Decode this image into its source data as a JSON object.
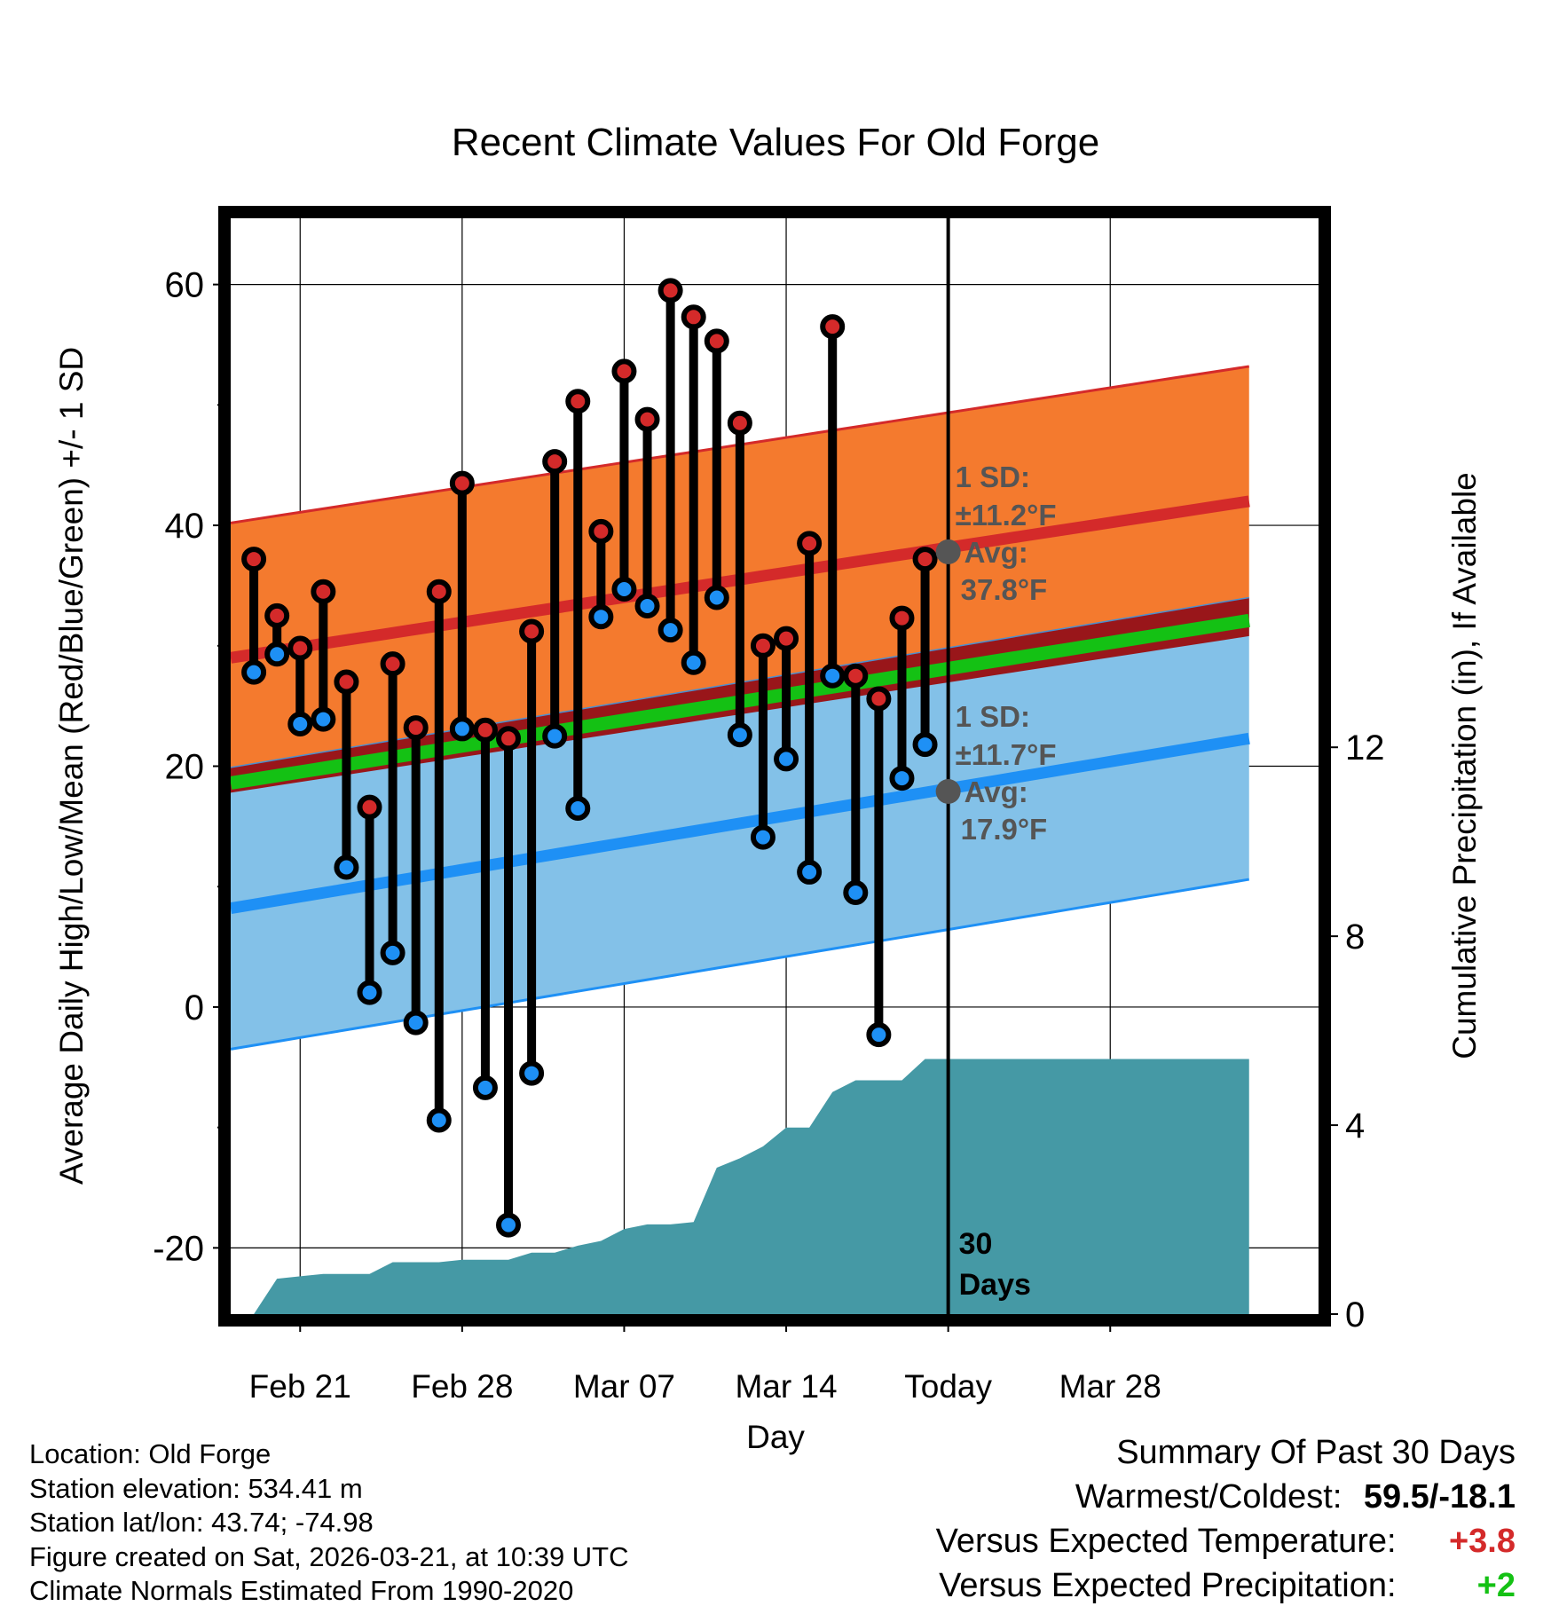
{
  "title": "Recent Climate Values For Old Forge",
  "chart_data": {
    "type": "range-dumbbell-with-bands",
    "title": "Recent Climate Values For Old Forge",
    "xlabel": "Day",
    "ylabel_left": "Average Daily High/Low/Mean (Red/Blue/Green) +/- 1 SD",
    "ylabel_right": "Cumulative Precipitation (in), If Available",
    "ylim_left": [
      -25.5,
      65.5
    ],
    "ylim_right": [
      0,
      23.2
    ],
    "xlim": [
      -3.0,
      44.0
    ],
    "yticks_left": [
      -20,
      0,
      20,
      40,
      60
    ],
    "yticks_left_labels": [
      "-20",
      "0",
      "20",
      "40",
      "60"
    ],
    "yticks_right": [
      0,
      4,
      8,
      12
    ],
    "yticks_right_labels": [
      "0",
      "4",
      "8",
      "12"
    ],
    "xticks": [
      0,
      7,
      14,
      21,
      28,
      35
    ],
    "xtick_labels": [
      "Feb 21",
      "Feb 28",
      "Mar 07",
      "Mar 14",
      "Today",
      "Mar 28"
    ],
    "today_x": 28,
    "today_marker_text": [
      "30",
      "Days"
    ],
    "days_x": [
      -2,
      -1,
      0,
      1,
      2,
      3,
      4,
      5,
      6,
      7,
      8,
      9,
      10,
      11,
      12,
      13,
      14,
      15,
      16,
      17,
      18,
      19,
      20,
      21,
      22,
      23,
      24,
      25,
      26,
      27
    ],
    "daily_high": [
      37.2,
      32.5,
      29.8,
      34.5,
      27.0,
      16.6,
      28.5,
      23.2,
      34.5,
      43.5,
      23.0,
      22.3,
      31.2,
      45.3,
      50.3,
      39.5,
      52.8,
      48.8,
      59.5,
      57.3,
      55.3,
      48.5,
      30.0,
      30.6,
      38.5,
      56.5,
      27.5,
      25.6,
      32.3,
      37.2
    ],
    "daily_low": [
      27.8,
      29.3,
      23.5,
      23.9,
      11.6,
      1.2,
      4.5,
      -1.3,
      -9.4,
      23.1,
      -6.7,
      -18.1,
      -5.5,
      22.5,
      16.5,
      32.4,
      34.7,
      33.3,
      31.3,
      28.6,
      34.0,
      22.6,
      14.1,
      20.6,
      11.2,
      27.5,
      9.5,
      -2.3,
      19.0,
      21.8
    ],
    "normal_high": {
      "x": [
        -3,
        41
      ],
      "avg": [
        29.0,
        42.0
      ],
      "sd": 11.2
    },
    "normal_low": {
      "x": [
        -3,
        41
      ],
      "avg": [
        8.2,
        22.3
      ],
      "sd": 11.7
    },
    "normal_mean": {
      "x": [
        -3,
        41
      ],
      "avg": [
        18.6,
        32.1
      ]
    },
    "annotation_high": {
      "lines": [
        "1 SD:",
        "±11.2°F",
        "Avg:",
        "37.8°F"
      ],
      "value": 37.8
    },
    "annotation_low": {
      "lines": [
        "1 SD:",
        "±11.7°F",
        "Avg:",
        "17.9°F"
      ],
      "value": 17.9
    },
    "precip_x": [
      -2,
      -1,
      0,
      1,
      2,
      3,
      4,
      5,
      6,
      7,
      8,
      9,
      10,
      11,
      12,
      13,
      14,
      15,
      16,
      17,
      18,
      19,
      20,
      21,
      22,
      23,
      24,
      25,
      26,
      27,
      28,
      41
    ],
    "precip_cum": [
      0.0,
      0.75,
      0.8,
      0.85,
      0.85,
      0.85,
      1.1,
      1.1,
      1.1,
      1.15,
      1.15,
      1.15,
      1.3,
      1.3,
      1.45,
      1.55,
      1.8,
      1.9,
      1.9,
      1.95,
      3.1,
      3.3,
      3.55,
      3.95,
      3.95,
      4.7,
      4.95,
      4.95,
      4.95,
      5.4,
      5.4,
      5.4
    ],
    "colors": {
      "high_band": "#f47a2e",
      "high_line": "#d42a2a",
      "low_band": "#83c1e8",
      "low_line": "#1e90f5",
      "overlap_band": "#99161a",
      "mean_band": "#14c114",
      "precip": "#4599a5",
      "high_dot": "#d42a2a",
      "low_dot": "#1e90f5",
      "annotation": "#555555"
    }
  },
  "footer": {
    "location": "Location: Old Forge",
    "elevation": "Station elevation: 534.41 m",
    "latlon": "Station lat/lon: 43.74; -74.98",
    "created": "Figure created on Sat, 2026-03-21, at 10:39 UTC",
    "normals": "Climate Normals Estimated From 1990-2020"
  },
  "summary": {
    "title": "Summary Of Past 30 Days",
    "warmest_coldest_label": "Warmest/Coldest:",
    "warmest_coldest_value": "59.5/-18.1",
    "temp_label": "Versus Expected Temperature:",
    "temp_value": "+3.8",
    "temp_color": "#d42a2a",
    "precip_label": "Versus Expected Precipitation:",
    "precip_value": "+2",
    "precip_color": "#14c114"
  }
}
